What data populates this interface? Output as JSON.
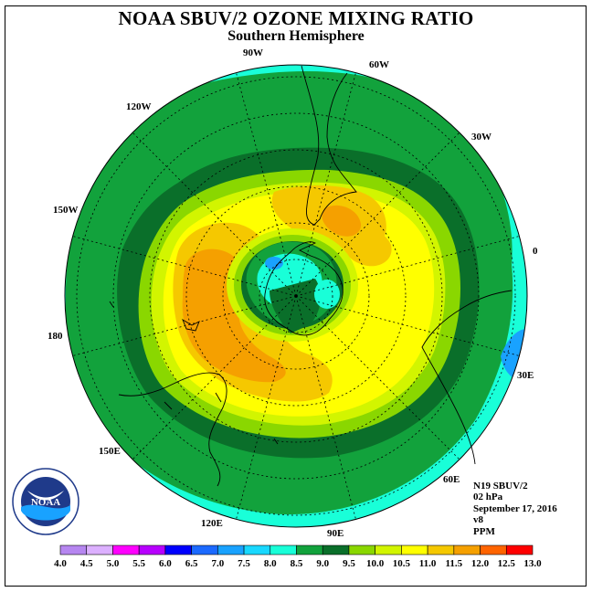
{
  "title": "NOAA SBUV/2 OZONE MIXING RATIO",
  "subtitle": "Southern Hemisphere",
  "longitude_labels": [
    "90W",
    "60W",
    "120W",
    "30W",
    "150W",
    "0",
    "180",
    "30E",
    "150E",
    "60E",
    "120E",
    "90E"
  ],
  "info": {
    "satellite": "N19 SBUV/2",
    "pressure": "02 hPa",
    "date": "September 17, 2016",
    "version": "v8",
    "units": "PPM"
  },
  "logo_text": "NOAA",
  "logo_ring_text": "NATIONAL OCEANIC AND ATMOSPHERIC ADMINISTRATION · U.S. DEPARTMENT OF COMMERCE",
  "colorbar": {
    "labels": [
      "4.0",
      "4.5",
      "5.0",
      "5.5",
      "6.0",
      "6.5",
      "7.0",
      "7.5",
      "8.0",
      "8.5",
      "9.0",
      "9.5",
      "10.0",
      "10.5",
      "11.0",
      "11.5",
      "12.0",
      "12.5",
      "13.0"
    ],
    "colors": [
      "#b686f0",
      "#dcb0ff",
      "#ff00ff",
      "#b800ff",
      "#0000ff",
      "#1c6aff",
      "#19a2ff",
      "#19d8ff",
      "#19ffd8",
      "#12a23c",
      "#0a6f2a",
      "#8ad700",
      "#d2f500",
      "#ffff00",
      "#f5c800",
      "#f5a000",
      "#ff6400",
      "#ff0000",
      "#8c4628"
    ]
  },
  "field_colors": {
    "cyan": "#19ffd8",
    "green": "#12a23c",
    "dark_green": "#0a6f2a",
    "light_green": "#8ad700",
    "yellow_green": "#d2f500",
    "yellow": "#ffff00",
    "light_orange": "#f5c800",
    "orange": "#f5a000",
    "light_blue": "#19a2ff"
  }
}
